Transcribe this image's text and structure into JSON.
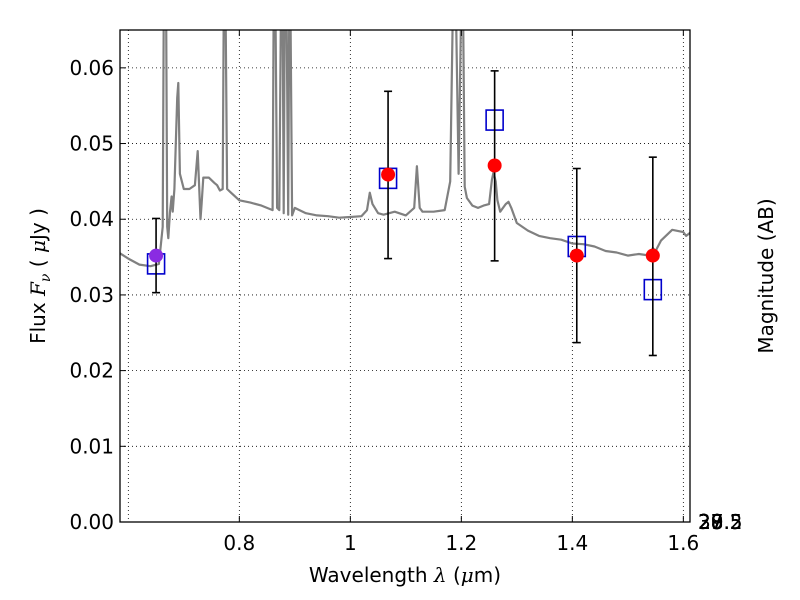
{
  "chart_data": {
    "type": "scatter",
    "xlabel": {
      "prefix": "Wavelength  ",
      "symbol": "λ",
      "unit_open": " (",
      "unit_mu": "μ",
      "unit_rest": "m)"
    },
    "ylabel": {
      "prefix": "Flux  ",
      "symbol": "F",
      "subscript": "ν",
      "unit_open": "  ( ",
      "unit_mu": "μ",
      "unit_rest": "Jy )"
    },
    "y2label": "Magnitude (AB)",
    "xlim": [
      0.585,
      1.612
    ],
    "ylim": [
      0.0,
      0.065
    ],
    "x_ticks": [
      0.8,
      1.0,
      1.2,
      1.4,
      1.6
    ],
    "x_tick_labels": [
      "0.8",
      "1",
      "1.2",
      "1.4",
      "1.6"
    ],
    "x_grid": [
      0.6,
      0.8,
      1.0,
      1.2,
      1.4,
      1.6
    ],
    "y_ticks": [
      0.0,
      0.01,
      0.02,
      0.03,
      0.04,
      0.05,
      0.06
    ],
    "y_tick_labels": [
      "0.00",
      "0.01",
      "0.02",
      "0.03",
      "0.04",
      "0.05",
      "0.06"
    ],
    "y2_ticks": [
      27,
      27.2,
      27.5,
      28,
      28.5,
      29,
      30
    ],
    "y2_tick_labels": [
      "27",
      "27.2",
      "27.5",
      "28",
      "28.5",
      "29",
      "30"
    ],
    "grid": true,
    "colors": {
      "model": "#808080",
      "observed": "#ff0000",
      "model_points": "#0000cc",
      "errorbar": "#000000",
      "overlap": "#8a2be2"
    },
    "series": [
      {
        "kind": "observed",
        "points": [
          {
            "x": 0.65,
            "y": 0.0352,
            "yerr_low": 0.0303,
            "yerr_high": 0.0401
          },
          {
            "x": 1.068,
            "y": 0.0459,
            "yerr_low": 0.0348,
            "yerr_high": 0.0569
          },
          {
            "x": 1.26,
            "y": 0.0471,
            "yerr_low": 0.0345,
            "yerr_high": 0.0596
          },
          {
            "x": 1.408,
            "y": 0.0352,
            "yerr_low": 0.0237,
            "yerr_high": 0.0467
          },
          {
            "x": 1.545,
            "y": 0.0352,
            "yerr_low": 0.022,
            "yerr_high": 0.0482
          }
        ]
      },
      {
        "kind": "model_points",
        "points": [
          {
            "x": 0.65,
            "y": 0.0341
          },
          {
            "x": 1.068,
            "y": 0.0454
          },
          {
            "x": 1.26,
            "y": 0.0531
          },
          {
            "x": 1.408,
            "y": 0.0364
          },
          {
            "x": 1.545,
            "y": 0.0307
          }
        ]
      },
      {
        "kind": "model_spectrum",
        "x": [
          0.585,
          0.6,
          0.62,
          0.64,
          0.655,
          0.662,
          0.664,
          0.668,
          0.67,
          0.672,
          0.675,
          0.678,
          0.68,
          0.683,
          0.688,
          0.69,
          0.693,
          0.7,
          0.71,
          0.72,
          0.725,
          0.73,
          0.732,
          0.735,
          0.745,
          0.755,
          0.76,
          0.765,
          0.77,
          0.772,
          0.775,
          0.778,
          0.785,
          0.8,
          0.82,
          0.84,
          0.86,
          0.862,
          0.865,
          0.868,
          0.872,
          0.875,
          0.878,
          0.88,
          0.882,
          0.885,
          0.888,
          0.89,
          0.892,
          0.895,
          0.9,
          0.92,
          0.94,
          0.96,
          0.98,
          1.0,
          1.02,
          1.03,
          1.035,
          1.04,
          1.05,
          1.06,
          1.08,
          1.1,
          1.115,
          1.12,
          1.125,
          1.13,
          1.15,
          1.17,
          1.18,
          1.185,
          1.19,
          1.195,
          1.2,
          1.203,
          1.206,
          1.21,
          1.22,
          1.23,
          1.24,
          1.25,
          1.255,
          1.258,
          1.262,
          1.265,
          1.27,
          1.28,
          1.285,
          1.29,
          1.3,
          1.32,
          1.34,
          1.36,
          1.38,
          1.4,
          1.42,
          1.44,
          1.46,
          1.48,
          1.5,
          1.52,
          1.54,
          1.545,
          1.55,
          1.56,
          1.58,
          1.6,
          1.605,
          1.612
        ],
        "y": [
          0.0355,
          0.0348,
          0.034,
          0.0338,
          0.0341,
          0.039,
          0.069,
          0.069,
          0.039,
          0.0375,
          0.041,
          0.043,
          0.041,
          0.044,
          0.056,
          0.058,
          0.046,
          0.044,
          0.044,
          0.0445,
          0.049,
          0.04,
          0.042,
          0.0455,
          0.0455,
          0.0448,
          0.0445,
          0.0438,
          0.044,
          0.069,
          0.069,
          0.044,
          0.0435,
          0.0425,
          0.0422,
          0.0418,
          0.0412,
          0.069,
          0.069,
          0.0415,
          0.0412,
          0.069,
          0.069,
          0.0408,
          0.069,
          0.069,
          0.0406,
          0.069,
          0.069,
          0.0405,
          0.0415,
          0.0408,
          0.0405,
          0.0404,
          0.0402,
          0.0403,
          0.0404,
          0.0412,
          0.0435,
          0.042,
          0.0408,
          0.0406,
          0.041,
          0.0405,
          0.0415,
          0.047,
          0.0415,
          0.041,
          0.041,
          0.0412,
          0.045,
          0.069,
          0.069,
          0.046,
          0.069,
          0.069,
          0.0443,
          0.0428,
          0.0418,
          0.0415,
          0.0418,
          0.042,
          0.0452,
          0.0462,
          0.045,
          0.0425,
          0.041,
          0.042,
          0.0423,
          0.0415,
          0.0395,
          0.0385,
          0.0378,
          0.0375,
          0.0373,
          0.0368,
          0.0367,
          0.0364,
          0.0358,
          0.0356,
          0.0352,
          0.0354,
          0.0352,
          0.0362,
          0.0358,
          0.0372,
          0.0386,
          0.0383,
          0.0378,
          0.0382
        ]
      }
    ]
  }
}
